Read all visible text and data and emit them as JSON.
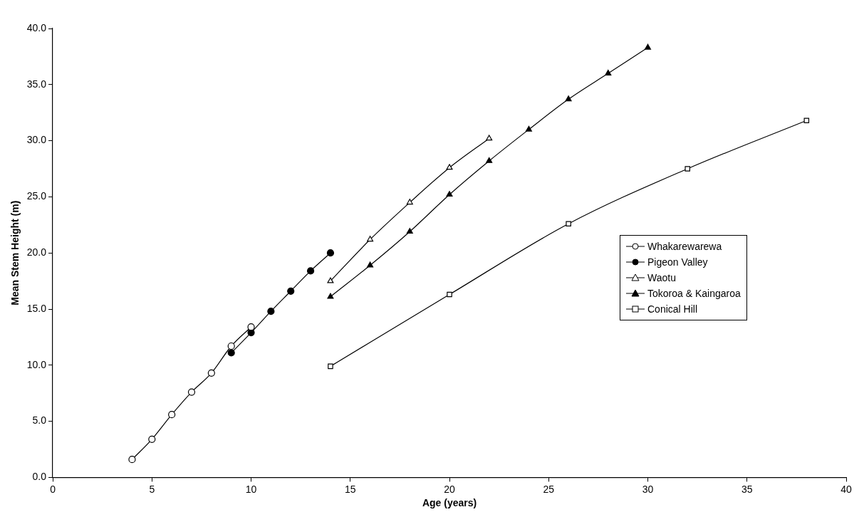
{
  "chart_data": {
    "type": "line",
    "xlabel": "Age (years)",
    "ylabel": "Mean Stem Height (m)",
    "xlim": [
      0,
      40
    ],
    "xticks": [
      0,
      5,
      10,
      15,
      20,
      25,
      30,
      35,
      40
    ],
    "ylim": [
      0,
      40
    ],
    "yticks": [
      {
        "value": 0,
        "label": "0.0"
      },
      {
        "value": 5,
        "label": "5.0"
      },
      {
        "value": 10,
        "label": "10.0"
      },
      {
        "value": 15,
        "label": "15.0"
      },
      {
        "value": 20,
        "label": "20.0"
      },
      {
        "value": 25,
        "label": "25.0"
      },
      {
        "value": 30,
        "label": "30.0"
      },
      {
        "value": 35,
        "label": "35.0"
      },
      {
        "value": 40,
        "label": "40.0"
      }
    ],
    "grid": false,
    "legend": "right",
    "line_style": "solid",
    "series": [
      {
        "name": "Whakarewarewa",
        "color": "#000000",
        "marker": "circle",
        "x": [
          4,
          5,
          6,
          7,
          8,
          9,
          10
        ],
        "values": [
          1.6,
          3.4,
          5.6,
          7.6,
          9.3,
          11.7,
          13.4
        ]
      },
      {
        "name": "Pigeon Valley",
        "color": "#000000",
        "marker": "circle",
        "x": [
          9,
          10,
          11,
          12,
          13,
          14
        ],
        "values": [
          11.1,
          12.9,
          14.8,
          16.6,
          18.4,
          20.0
        ]
      },
      {
        "name": "Waotu",
        "color": "#000000",
        "marker": "triangle",
        "x": [
          14,
          16,
          18,
          20,
          22
        ],
        "values": [
          17.5,
          21.2,
          24.5,
          27.6,
          30.2
        ]
      },
      {
        "name": "Tokoroa & Kaingaroa",
        "color": "#000000",
        "marker": "triangle",
        "x": [
          14,
          16,
          18,
          20,
          22,
          24,
          26,
          28,
          30
        ],
        "values": [
          16.1,
          18.9,
          21.9,
          25.2,
          28.2,
          31.0,
          33.7,
          36.0,
          38.3
        ]
      },
      {
        "name": "Conical Hill",
        "color": "#000000",
        "marker": "square",
        "x": [
          14,
          20,
          26,
          32,
          38
        ],
        "values": [
          9.9,
          16.3,
          22.6,
          27.5,
          31.8
        ]
      }
    ]
  }
}
